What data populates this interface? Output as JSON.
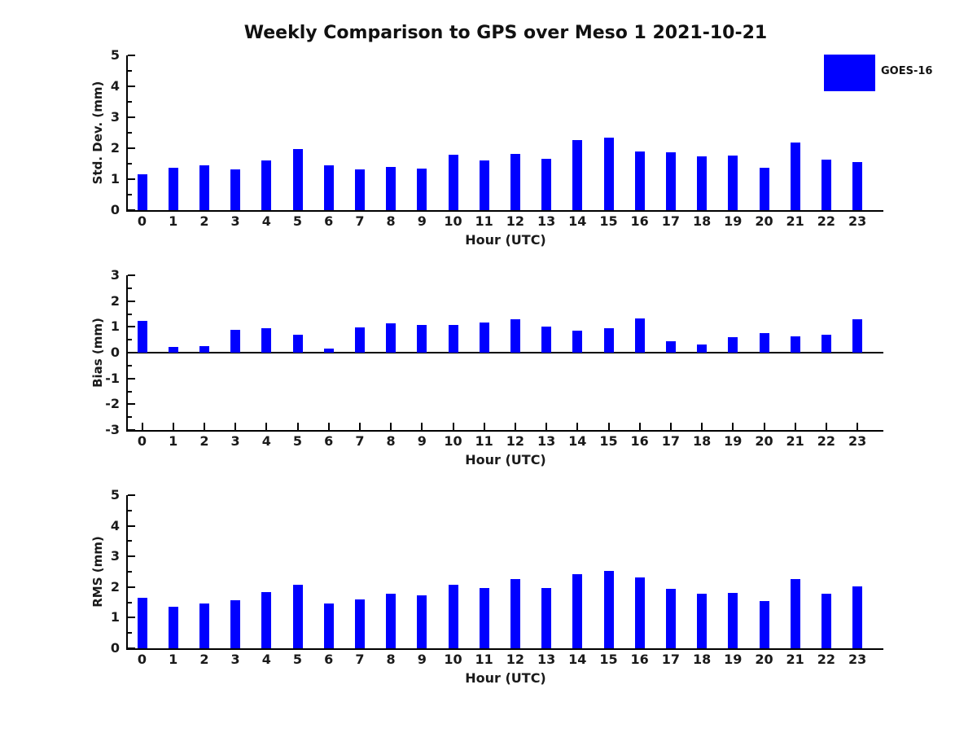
{
  "title": "Weekly Comparison to GPS over Meso 1 2021-10-21",
  "legend": {
    "label": "GOES-16",
    "color": "#0000ff",
    "position": "upper-right"
  },
  "colors": {
    "bar": "#0000ff",
    "axis": "#000000",
    "text": "#1a1a1a",
    "background": "#ffffff"
  },
  "chart_data": [
    {
      "type": "bar",
      "title": "",
      "ylabel": "Std. Dev. (mm)",
      "xlabel": "Hour (UTC)",
      "series_name": "GOES-16",
      "categories": [
        "0",
        "1",
        "2",
        "3",
        "4",
        "5",
        "6",
        "7",
        "8",
        "9",
        "10",
        "11",
        "12",
        "13",
        "14",
        "15",
        "16",
        "17",
        "18",
        "19",
        "20",
        "21",
        "22",
        "23"
      ],
      "values": [
        1.15,
        1.37,
        1.44,
        1.31,
        1.6,
        1.97,
        1.46,
        1.31,
        1.39,
        1.34,
        1.78,
        1.6,
        1.82,
        1.67,
        2.27,
        2.33,
        1.9,
        1.88,
        1.75,
        1.76,
        1.36,
        2.18,
        1.64,
        1.54
      ],
      "ylim": [
        0,
        5
      ],
      "yticks": [
        0,
        1,
        2,
        3,
        4,
        5
      ],
      "minor_tick_step": 0.5,
      "x_tick_marks_visible": false,
      "zero_line": false,
      "grid": false
    },
    {
      "type": "bar",
      "title": "",
      "ylabel": "Bias (mm)",
      "xlabel": "Hour (UTC)",
      "series_name": "GOES-16",
      "categories": [
        "0",
        "1",
        "2",
        "3",
        "4",
        "5",
        "6",
        "7",
        "8",
        "9",
        "10",
        "11",
        "12",
        "13",
        "14",
        "15",
        "16",
        "17",
        "18",
        "19",
        "20",
        "21",
        "22",
        "23"
      ],
      "values": [
        1.22,
        0.22,
        0.25,
        0.89,
        0.95,
        0.7,
        0.15,
        0.97,
        1.13,
        1.07,
        1.08,
        1.17,
        1.29,
        1.02,
        0.84,
        0.95,
        1.33,
        0.43,
        0.31,
        0.59,
        0.77,
        0.64,
        0.7,
        1.29
      ],
      "ylim": [
        -3,
        3
      ],
      "yticks": [
        -3,
        -2,
        -1,
        0,
        1,
        2,
        3
      ],
      "minor_tick_step": 0.5,
      "x_tick_marks_visible": true,
      "zero_line": true,
      "grid": false
    },
    {
      "type": "bar",
      "title": "",
      "ylabel": "RMS (mm)",
      "xlabel": "Hour (UTC)",
      "series_name": "GOES-16",
      "categories": [
        "0",
        "1",
        "2",
        "3",
        "4",
        "5",
        "6",
        "7",
        "8",
        "9",
        "10",
        "11",
        "12",
        "13",
        "14",
        "15",
        "16",
        "17",
        "18",
        "19",
        "20",
        "21",
        "22",
        "23"
      ],
      "values": [
        1.66,
        1.37,
        1.45,
        1.57,
        1.84,
        2.07,
        1.45,
        1.6,
        1.79,
        1.72,
        2.07,
        1.97,
        2.25,
        1.96,
        2.42,
        2.52,
        2.31,
        1.93,
        1.77,
        1.81,
        1.55,
        2.26,
        1.79,
        2.01
      ],
      "ylim": [
        0,
        5
      ],
      "yticks": [
        0,
        1,
        2,
        3,
        4,
        5
      ],
      "minor_tick_step": 0.5,
      "x_tick_marks_visible": false,
      "zero_line": false,
      "grid": false
    }
  ]
}
